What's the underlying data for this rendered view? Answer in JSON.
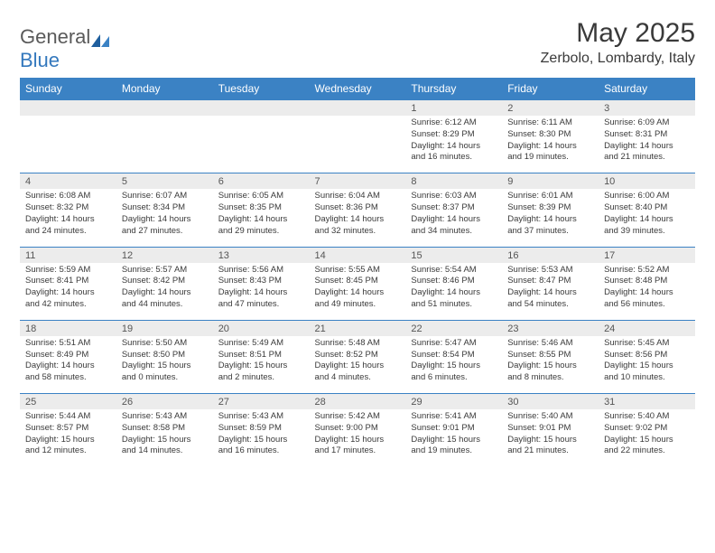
{
  "brand": {
    "part1": "General",
    "part2": "Blue"
  },
  "title": "May 2025",
  "location": "Zerbolo, Lombardy, Italy",
  "colors": {
    "header_bg": "#3b82c4",
    "header_text": "#ffffff",
    "daynum_bg": "#ececec",
    "border": "#3b82c4",
    "text": "#3a3a3a",
    "logo_gray": "#5a5a5a",
    "logo_blue": "#3478bd"
  },
  "dayNames": [
    "Sunday",
    "Monday",
    "Tuesday",
    "Wednesday",
    "Thursday",
    "Friday",
    "Saturday"
  ],
  "weeks": [
    [
      null,
      null,
      null,
      null,
      {
        "n": "1",
        "sr": "6:12 AM",
        "ss": "8:29 PM",
        "dl": "14 hours and 16 minutes."
      },
      {
        "n": "2",
        "sr": "6:11 AM",
        "ss": "8:30 PM",
        "dl": "14 hours and 19 minutes."
      },
      {
        "n": "3",
        "sr": "6:09 AM",
        "ss": "8:31 PM",
        "dl": "14 hours and 21 minutes."
      }
    ],
    [
      {
        "n": "4",
        "sr": "6:08 AM",
        "ss": "8:32 PM",
        "dl": "14 hours and 24 minutes."
      },
      {
        "n": "5",
        "sr": "6:07 AM",
        "ss": "8:34 PM",
        "dl": "14 hours and 27 minutes."
      },
      {
        "n": "6",
        "sr": "6:05 AM",
        "ss": "8:35 PM",
        "dl": "14 hours and 29 minutes."
      },
      {
        "n": "7",
        "sr": "6:04 AM",
        "ss": "8:36 PM",
        "dl": "14 hours and 32 minutes."
      },
      {
        "n": "8",
        "sr": "6:03 AM",
        "ss": "8:37 PM",
        "dl": "14 hours and 34 minutes."
      },
      {
        "n": "9",
        "sr": "6:01 AM",
        "ss": "8:39 PM",
        "dl": "14 hours and 37 minutes."
      },
      {
        "n": "10",
        "sr": "6:00 AM",
        "ss": "8:40 PM",
        "dl": "14 hours and 39 minutes."
      }
    ],
    [
      {
        "n": "11",
        "sr": "5:59 AM",
        "ss": "8:41 PM",
        "dl": "14 hours and 42 minutes."
      },
      {
        "n": "12",
        "sr": "5:57 AM",
        "ss": "8:42 PM",
        "dl": "14 hours and 44 minutes."
      },
      {
        "n": "13",
        "sr": "5:56 AM",
        "ss": "8:43 PM",
        "dl": "14 hours and 47 minutes."
      },
      {
        "n": "14",
        "sr": "5:55 AM",
        "ss": "8:45 PM",
        "dl": "14 hours and 49 minutes."
      },
      {
        "n": "15",
        "sr": "5:54 AM",
        "ss": "8:46 PM",
        "dl": "14 hours and 51 minutes."
      },
      {
        "n": "16",
        "sr": "5:53 AM",
        "ss": "8:47 PM",
        "dl": "14 hours and 54 minutes."
      },
      {
        "n": "17",
        "sr": "5:52 AM",
        "ss": "8:48 PM",
        "dl": "14 hours and 56 minutes."
      }
    ],
    [
      {
        "n": "18",
        "sr": "5:51 AM",
        "ss": "8:49 PM",
        "dl": "14 hours and 58 minutes."
      },
      {
        "n": "19",
        "sr": "5:50 AM",
        "ss": "8:50 PM",
        "dl": "15 hours and 0 minutes."
      },
      {
        "n": "20",
        "sr": "5:49 AM",
        "ss": "8:51 PM",
        "dl": "15 hours and 2 minutes."
      },
      {
        "n": "21",
        "sr": "5:48 AM",
        "ss": "8:52 PM",
        "dl": "15 hours and 4 minutes."
      },
      {
        "n": "22",
        "sr": "5:47 AM",
        "ss": "8:54 PM",
        "dl": "15 hours and 6 minutes."
      },
      {
        "n": "23",
        "sr": "5:46 AM",
        "ss": "8:55 PM",
        "dl": "15 hours and 8 minutes."
      },
      {
        "n": "24",
        "sr": "5:45 AM",
        "ss": "8:56 PM",
        "dl": "15 hours and 10 minutes."
      }
    ],
    [
      {
        "n": "25",
        "sr": "5:44 AM",
        "ss": "8:57 PM",
        "dl": "15 hours and 12 minutes."
      },
      {
        "n": "26",
        "sr": "5:43 AM",
        "ss": "8:58 PM",
        "dl": "15 hours and 14 minutes."
      },
      {
        "n": "27",
        "sr": "5:43 AM",
        "ss": "8:59 PM",
        "dl": "15 hours and 16 minutes."
      },
      {
        "n": "28",
        "sr": "5:42 AM",
        "ss": "9:00 PM",
        "dl": "15 hours and 17 minutes."
      },
      {
        "n": "29",
        "sr": "5:41 AM",
        "ss": "9:01 PM",
        "dl": "15 hours and 19 minutes."
      },
      {
        "n": "30",
        "sr": "5:40 AM",
        "ss": "9:01 PM",
        "dl": "15 hours and 21 minutes."
      },
      {
        "n": "31",
        "sr": "5:40 AM",
        "ss": "9:02 PM",
        "dl": "15 hours and 22 minutes."
      }
    ]
  ],
  "labels": {
    "sunrise": "Sunrise: ",
    "sunset": "Sunset: ",
    "daylight": "Daylight: "
  }
}
